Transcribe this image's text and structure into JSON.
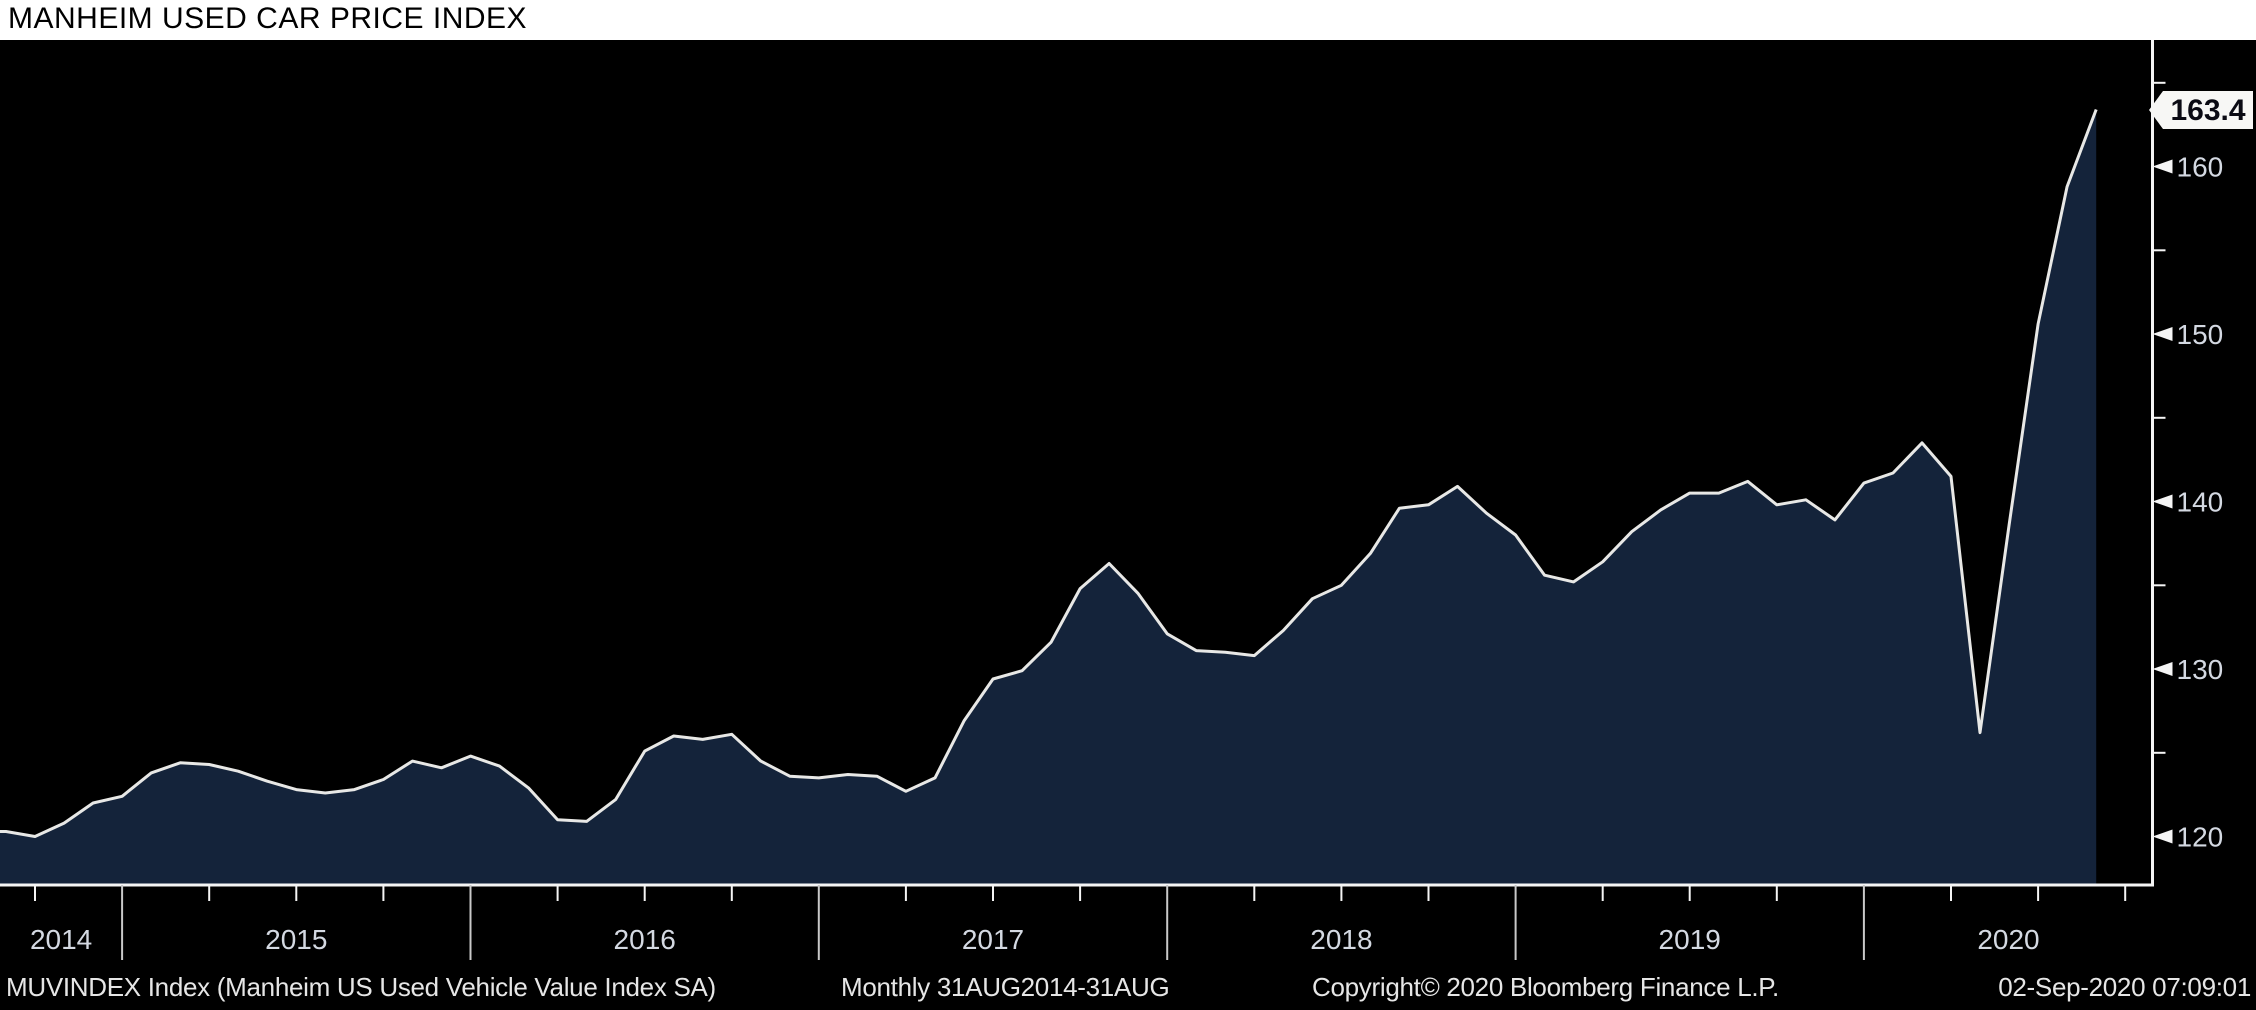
{
  "header": {
    "title": "MANHEIM USED CAR PRICE INDEX"
  },
  "footer": {
    "series": "MUVINDEX Index (Manheim US Used Vehicle Value Index SA)",
    "period": "Monthly 31AUG2014-31AUG",
    "copyright": "Copyright© 2020 Bloomberg Finance L.P.",
    "timestamp": "02-Sep-2020 07:09:01"
  },
  "chart_data": {
    "type": "area",
    "title": "MANHEIM USED CAR PRICE INDEX",
    "series_name": "MUVINDEX Index (Manheim US Used Vehicle Value Index SA)",
    "frequency": "Monthly",
    "x_start": "2014-08",
    "x_end": "2020-08",
    "x_year_labels": [
      "2014",
      "2015",
      "2016",
      "2017",
      "2018",
      "2019",
      "2020"
    ],
    "y_ticks_major": [
      120,
      130,
      140,
      150,
      160
    ],
    "y_ticks_minor": [
      125,
      135,
      145,
      155,
      165
    ],
    "ylim": [
      117.1,
      167.6
    ],
    "grid": false,
    "legend": "none",
    "last_value": 163.4,
    "last_value_label": "163.4",
    "values": [
      120.3,
      120.0,
      120.8,
      122.0,
      122.4,
      123.8,
      124.4,
      124.3,
      123.9,
      123.3,
      122.8,
      122.6,
      122.8,
      123.4,
      124.5,
      124.1,
      124.8,
      124.2,
      122.9,
      121.0,
      120.9,
      122.2,
      125.1,
      126.0,
      125.8,
      126.1,
      124.5,
      123.6,
      123.5,
      123.7,
      123.6,
      122.7,
      123.5,
      126.9,
      129.4,
      129.9,
      131.6,
      134.8,
      136.3,
      134.5,
      132.1,
      131.1,
      131.0,
      130.8,
      132.3,
      134.2,
      135.0,
      136.9,
      139.6,
      139.8,
      140.9,
      139.3,
      138.0,
      135.6,
      135.2,
      136.4,
      138.2,
      139.5,
      140.5,
      140.5,
      141.2,
      139.8,
      140.1,
      138.9,
      141.1,
      141.7,
      143.5,
      141.5,
      126.2,
      138.6,
      150.6,
      158.8,
      163.4
    ],
    "colors": {
      "background": "#000000",
      "title_bar_bg": "#ffffff",
      "title_text": "#000000",
      "area_fill": "#14233a",
      "line": "#e8e8e6",
      "axis": "#f5f5f5",
      "tick_text": "#d4d9e2",
      "year_boundary_tick": "#c9c9c9",
      "footer_text": "#e6e6e6",
      "flag_bg": "#f7f7f5",
      "flag_text": "#0b0b14"
    }
  }
}
